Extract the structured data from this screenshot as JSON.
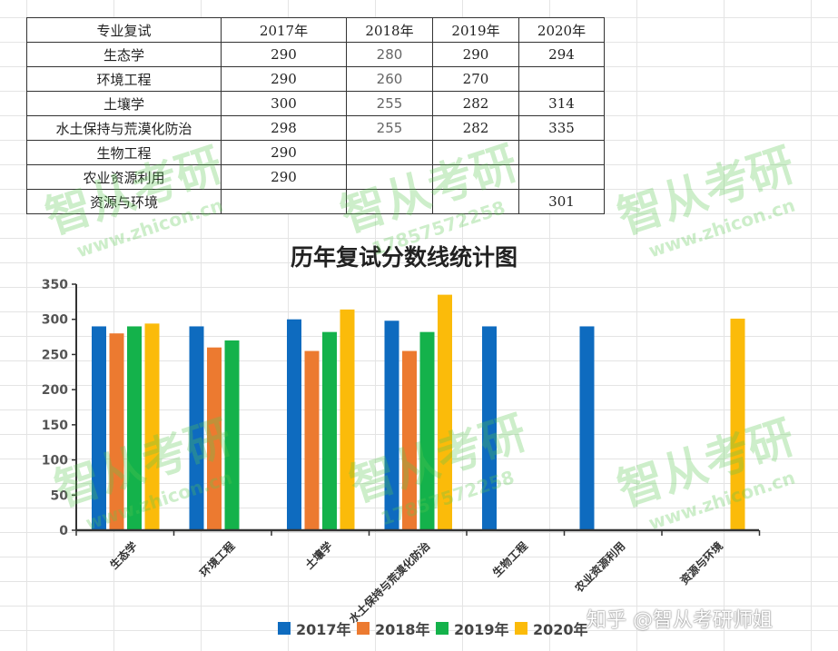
{
  "table": {
    "header": [
      "专业复试",
      "2017年",
      "2018年",
      "2019年",
      "2020年"
    ],
    "rows": [
      [
        "生态学",
        "290",
        "280",
        "290",
        "294"
      ],
      [
        "环境工程",
        "290",
        "260",
        "270",
        ""
      ],
      [
        "土壤学",
        "300",
        "255",
        "282",
        "314"
      ],
      [
        "水土保持与荒漠化防治",
        "298",
        "255",
        "282",
        "335"
      ],
      [
        "生物工程",
        "290",
        "",
        "",
        ""
      ],
      [
        "农业资源利用",
        "290",
        "",
        "",
        ""
      ],
      [
        "资源与环境",
        "",
        "",
        "",
        "301"
      ]
    ]
  },
  "chart_data": {
    "type": "bar",
    "title": "历年复试分数线统计图",
    "categories": [
      "生态学",
      "环境工程",
      "土壤学",
      "水土保持与荒漠化防治",
      "生物工程",
      "农业资源利用",
      "资源与环境"
    ],
    "series": [
      {
        "name": "2017年",
        "color": "#0e6bbf",
        "values": [
          290,
          290,
          300,
          298,
          290,
          290,
          null
        ]
      },
      {
        "name": "2018年",
        "color": "#ec7a30",
        "values": [
          280,
          260,
          255,
          255,
          null,
          null,
          null
        ]
      },
      {
        "name": "2019年",
        "color": "#14b24b",
        "values": [
          290,
          270,
          282,
          282,
          null,
          null,
          null
        ]
      },
      {
        "name": "2020年",
        "color": "#fbbb0a",
        "values": [
          294,
          null,
          314,
          335,
          null,
          null,
          301
        ]
      }
    ],
    "ylim": [
      0,
      350
    ],
    "yticks": [
      0,
      50,
      100,
      150,
      200,
      250,
      300,
      350
    ],
    "grid": false,
    "legend": "bottom"
  },
  "watermarks": {
    "brand": "智从考研",
    "site": "www.zhicon.cn",
    "phone": "17857572258",
    "zhihu": "知乎 @智从考研师姐"
  }
}
